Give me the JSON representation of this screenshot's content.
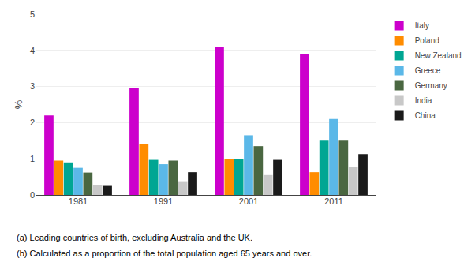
{
  "chart_data": {
    "type": "bar",
    "categories": [
      "1981",
      "1991",
      "2001",
      "2011"
    ],
    "series": [
      {
        "name": "Italy",
        "color": "#CC00CC",
        "values": [
          2.2,
          2.95,
          4.1,
          3.9
        ]
      },
      {
        "name": "Poland",
        "color": "#FF8C00",
        "values": [
          0.95,
          1.4,
          1.0,
          0.63
        ]
      },
      {
        "name": "New Zealand",
        "color": "#00A693",
        "values": [
          0.9,
          0.97,
          1.0,
          1.5
        ]
      },
      {
        "name": "Greece",
        "color": "#5BB8E8",
        "values": [
          0.75,
          0.85,
          1.65,
          2.1
        ]
      },
      {
        "name": "Germany",
        "color": "#4A6741",
        "values": [
          0.62,
          0.95,
          1.35,
          1.5
        ]
      },
      {
        "name": "India",
        "color": "#C8C8C8",
        "values": [
          0.28,
          0.38,
          0.55,
          0.78
        ]
      },
      {
        "name": "China",
        "color": "#1A1A1A",
        "values": [
          0.25,
          0.63,
          0.97,
          1.13
        ]
      }
    ],
    "y_label": "%",
    "ylim": [
      0,
      5
    ],
    "yticks": [
      0,
      1,
      2,
      3,
      4,
      5
    ],
    "grid": true,
    "legend": "right",
    "annotations": [
      "(a) Leading countries of birth, excluding Australia and the UK.",
      "(b) Calculated as a proportion of the total population aged 65 years and over."
    ]
  }
}
